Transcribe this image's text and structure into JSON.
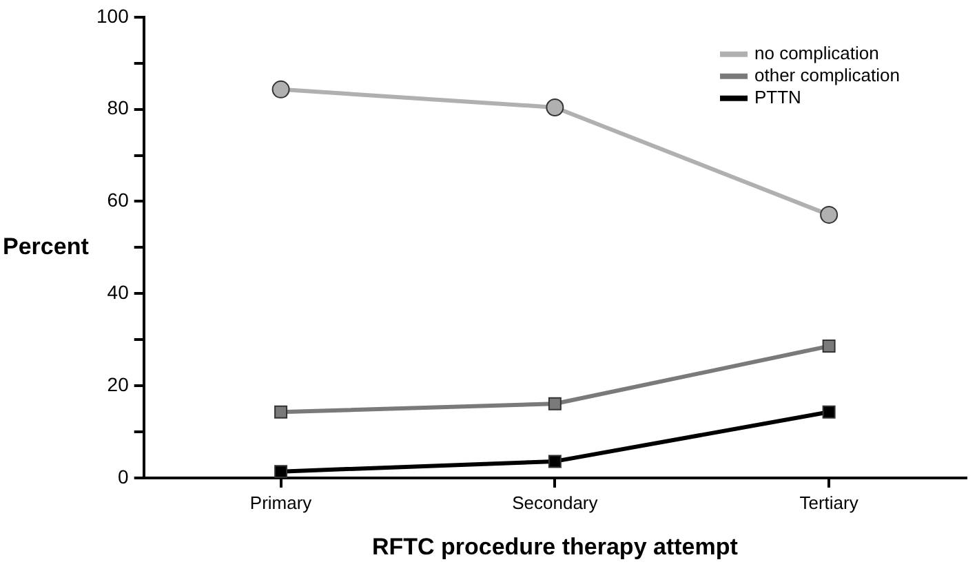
{
  "chart_data": {
    "type": "line",
    "xlabel": "RFTC procedure therapy attempt",
    "ylabel": "Percent",
    "categories": [
      "Primary",
      "Secondary",
      "Tertiary"
    ],
    "series": [
      {
        "name": "no complication",
        "color": "#b0b0b0",
        "marker": "circle",
        "values": [
          84.3,
          80.4,
          57.1
        ]
      },
      {
        "name": "other complication",
        "color": "#7a7a7a",
        "marker": "square",
        "values": [
          14.3,
          16.1,
          28.6
        ]
      },
      {
        "name": "PTTN",
        "color": "#000000",
        "marker": "square",
        "values": [
          1.4,
          3.6,
          14.3
        ]
      }
    ],
    "ylim": [
      0,
      100
    ],
    "yticks": [
      0,
      {
        "value": 10,
        "label": null
      },
      20,
      {
        "value": 30,
        "label": null
      },
      40,
      {
        "value": 50,
        "label": null
      },
      60,
      {
        "value": 70,
        "label": null
      },
      80,
      {
        "value": 90,
        "label": null
      },
      100
    ],
    "grid": false,
    "legend": "top right",
    "line_style": "solid"
  }
}
